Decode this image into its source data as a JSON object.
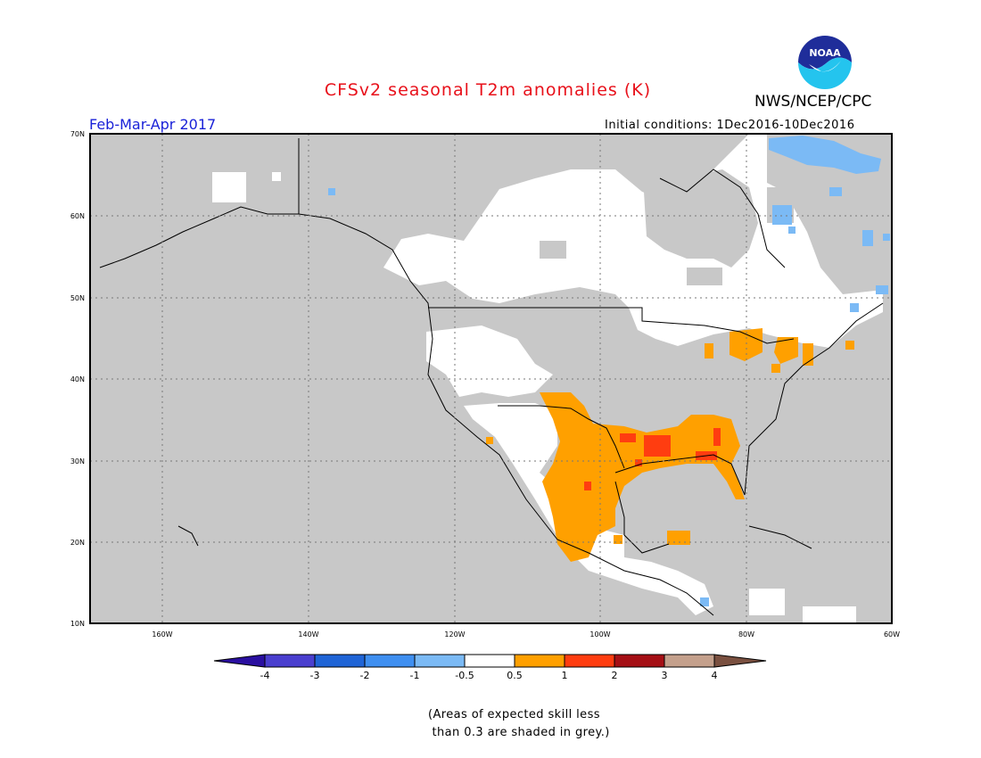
{
  "title": "CFSv2 seasonal T2m anomalies (K)",
  "agency": "NWS/NCEP/CPC",
  "logo_text": "NOAA",
  "period": "Feb-Mar-Apr 2017",
  "initial_conditions": "Initial conditions: 1Dec2016-10Dec2016",
  "lat_labels": [
    "70N",
    "60N",
    "50N",
    "40N",
    "30N",
    "20N",
    "10N"
  ],
  "lon_labels": [
    "160W",
    "140W",
    "120W",
    "100W",
    "80W",
    "60W"
  ],
  "legend": {
    "ticks": [
      "-4",
      "-3",
      "-2",
      "-1",
      "-0.5",
      "0.5",
      "1",
      "2",
      "3",
      "4"
    ],
    "colors": [
      "#2a0fa0",
      "#4a3fcf",
      "#1f64d6",
      "#3f8ff0",
      "#7bbaf5",
      "#ffffff",
      "#ffa000",
      "#ff3d10",
      "#a50f15",
      "#c4a08c",
      "#7a5040"
    ]
  },
  "note": [
    "(Areas of expected skill less",
    " than 0.3 are shaded in grey.)"
  ],
  "colors": {
    "grey_low_skill": "#c8c8c8",
    "title": "#e8101a",
    "period": "#1a22d8"
  }
}
